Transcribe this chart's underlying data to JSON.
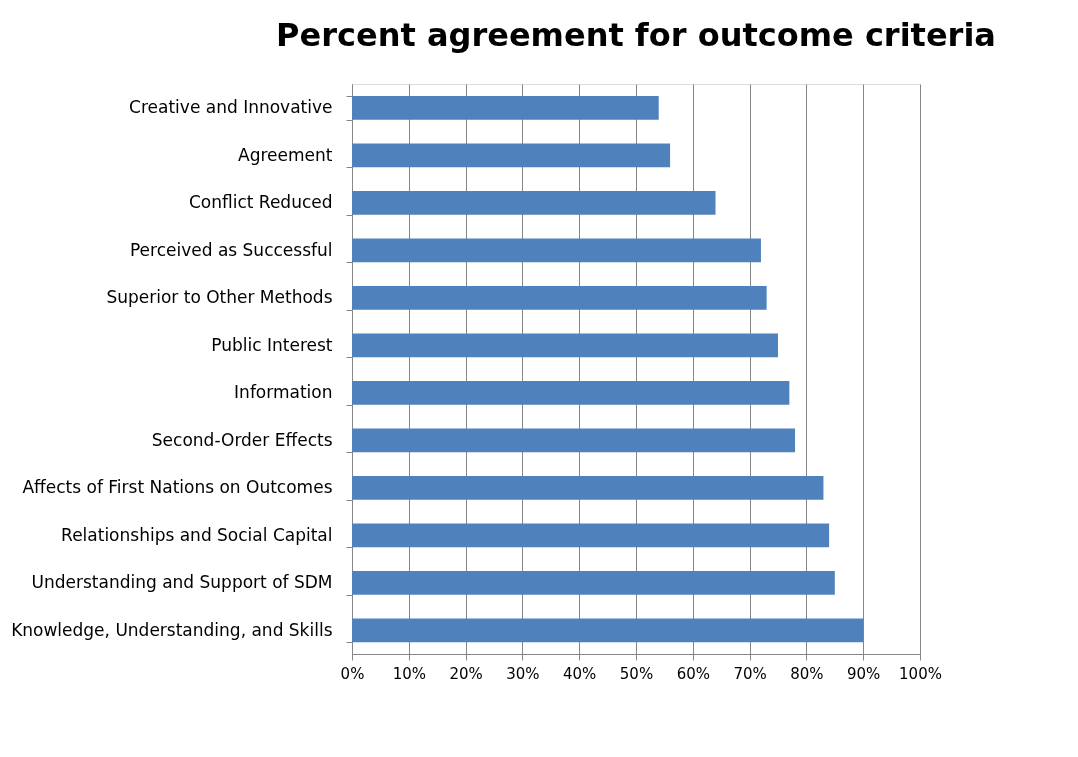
{
  "chart_data": {
    "type": "bar",
    "title": "Percent agreement for outcome criteria",
    "orientation": "horizontal",
    "categories": [
      "Creative and Innovative",
      "Agreement",
      "Conflict Reduced",
      "Perceived as Successful",
      "Superior to Other Methods",
      "Public Interest",
      "Information",
      "Second-Order Effects",
      "Affects of First Nations on Outcomes",
      "Relationships and Social Capital",
      "Understanding and Support of SDM",
      "Knowledge, Understanding, and Skills"
    ],
    "values": [
      54,
      56,
      64,
      72,
      73,
      75,
      77,
      78,
      83,
      84,
      85,
      90
    ],
    "color": "#4f81bd",
    "xlim": [
      0,
      100
    ],
    "xticks": [
      {
        "value": 0,
        "label": "0%"
      },
      {
        "value": 10,
        "label": "10%"
      },
      {
        "value": 20,
        "label": "20%"
      },
      {
        "value": 30,
        "label": "30%"
      },
      {
        "value": 40,
        "label": "40%"
      },
      {
        "value": 50,
        "label": "50%"
      },
      {
        "value": 60,
        "label": "60%"
      },
      {
        "value": 70,
        "label": "70%"
      },
      {
        "value": 80,
        "label": "80%"
      },
      {
        "value": 90,
        "label": "90%"
      },
      {
        "value": 100,
        "label": "100%"
      }
    ],
    "grid": "x"
  }
}
